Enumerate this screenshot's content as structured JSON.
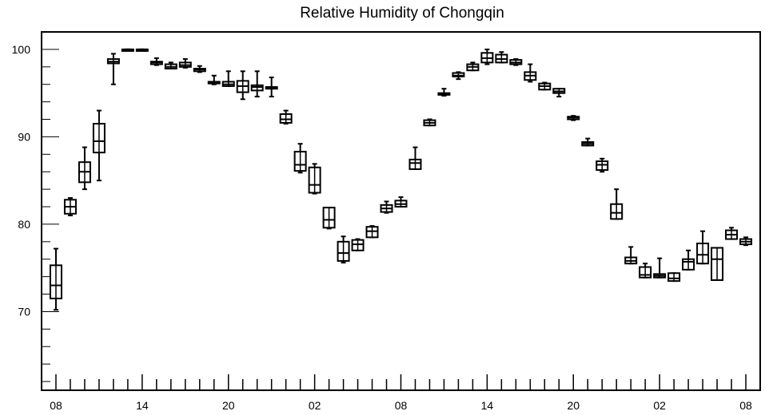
{
  "chart_data": {
    "type": "boxplot",
    "title": "Relative Humidity of Chongqin",
    "xlabel": "",
    "ylabel": "",
    "ylim": [
      61,
      102
    ],
    "y_ticks": [
      70,
      80,
      90,
      100
    ],
    "x_tick_labels": [
      {
        "hour": 0,
        "label": "08"
      },
      {
        "hour": 6,
        "label": "14"
      },
      {
        "hour": 12,
        "label": "20"
      },
      {
        "hour": 18,
        "label": "02"
      },
      {
        "hour": 24,
        "label": "08"
      },
      {
        "hour": 30,
        "label": "14"
      },
      {
        "hour": 36,
        "label": "20"
      },
      {
        "hour": 42,
        "label": "02"
      },
      {
        "hour": 48,
        "label": "08"
      }
    ],
    "xlim": [
      -1,
      49
    ],
    "grid": false,
    "boxes": [
      {
        "hour": 0,
        "min": 70.2,
        "q1": 71.5,
        "median": 73.0,
        "q3": 75.3,
        "max": 77.2
      },
      {
        "hour": 1,
        "min": 81.0,
        "q1": 81.2,
        "median": 82.0,
        "q3": 82.8,
        "max": 83.0
      },
      {
        "hour": 2,
        "min": 84.0,
        "q1": 84.8,
        "median": 86.0,
        "q3": 87.1,
        "max": 88.8
      },
      {
        "hour": 3,
        "min": 85.0,
        "q1": 88.2,
        "median": 89.5,
        "q3": 91.5,
        "max": 93.0
      },
      {
        "hour": 4,
        "min": 96.0,
        "q1": 98.4,
        "median": 98.6,
        "q3": 98.9,
        "max": 99.5
      },
      {
        "hour": 5,
        "min": 100.0,
        "q1": 100.0,
        "median": 100.0,
        "q3": 100.0,
        "max": 100.0
      },
      {
        "hour": 6,
        "min": 100.0,
        "q1": 100.0,
        "median": 100.0,
        "q3": 100.0,
        "max": 100.0
      },
      {
        "hour": 7,
        "min": 98.2,
        "q1": 98.3,
        "median": 98.5,
        "q3": 98.6,
        "max": 99.0
      },
      {
        "hour": 8,
        "min": 97.8,
        "q1": 97.8,
        "median": 98.0,
        "q3": 98.3,
        "max": 98.5
      },
      {
        "hour": 9,
        "min": 97.9,
        "q1": 98.0,
        "median": 98.2,
        "q3": 98.5,
        "max": 98.9
      },
      {
        "hour": 10,
        "min": 97.4,
        "q1": 97.5,
        "median": 97.7,
        "q3": 97.8,
        "max": 98.1
      },
      {
        "hour": 11,
        "min": 96.0,
        "q1": 96.1,
        "median": 96.2,
        "q3": 96.3,
        "max": 97.0
      },
      {
        "hour": 12,
        "min": 95.8,
        "q1": 95.8,
        "median": 96.0,
        "q3": 96.3,
        "max": 97.5
      },
      {
        "hour": 13,
        "min": 94.3,
        "q1": 95.1,
        "median": 95.8,
        "q3": 96.4,
        "max": 97.5
      },
      {
        "hour": 14,
        "min": 94.6,
        "q1": 95.3,
        "median": 95.7,
        "q3": 95.9,
        "max": 97.5
      },
      {
        "hour": 15,
        "min": 94.6,
        "q1": 95.5,
        "median": 95.6,
        "q3": 95.7,
        "max": 96.8
      },
      {
        "hour": 16,
        "min": 91.5,
        "q1": 91.6,
        "median": 92.0,
        "q3": 92.6,
        "max": 93.0
      },
      {
        "hour": 17,
        "min": 85.9,
        "q1": 86.1,
        "median": 86.8,
        "q3": 88.3,
        "max": 89.2
      },
      {
        "hour": 18,
        "min": 83.5,
        "q1": 83.6,
        "median": 84.5,
        "q3": 86.5,
        "max": 86.9
      },
      {
        "hour": 19,
        "min": 79.5,
        "q1": 79.6,
        "median": 80.5,
        "q3": 81.9,
        "max": 81.9
      },
      {
        "hour": 20,
        "min": 75.6,
        "q1": 75.8,
        "median": 76.7,
        "q3": 78.0,
        "max": 78.6
      },
      {
        "hour": 21,
        "min": 77.0,
        "q1": 77.0,
        "median": 77.7,
        "q3": 78.2,
        "max": 78.3
      },
      {
        "hour": 22,
        "min": 78.5,
        "q1": 78.5,
        "median": 79.2,
        "q3": 79.7,
        "max": 79.8
      },
      {
        "hour": 23,
        "min": 81.3,
        "q1": 81.4,
        "median": 81.8,
        "q3": 82.2,
        "max": 82.6
      },
      {
        "hour": 24,
        "min": 82.0,
        "q1": 82.0,
        "median": 82.3,
        "q3": 82.7,
        "max": 83.1
      },
      {
        "hour": 25,
        "min": 86.3,
        "q1": 86.3,
        "median": 87.0,
        "q3": 87.4,
        "max": 88.8
      },
      {
        "hour": 26,
        "min": 91.3,
        "q1": 91.3,
        "median": 91.6,
        "q3": 91.9,
        "max": 92.0
      },
      {
        "hour": 27,
        "min": 94.7,
        "q1": 94.8,
        "median": 94.9,
        "q3": 95.0,
        "max": 95.5
      },
      {
        "hour": 28,
        "min": 96.6,
        "q1": 96.9,
        "median": 97.0,
        "q3": 97.3,
        "max": 97.4
      },
      {
        "hour": 29,
        "min": 97.6,
        "q1": 97.6,
        "median": 98.0,
        "q3": 98.3,
        "max": 98.5
      },
      {
        "hour": 30,
        "min": 98.3,
        "q1": 98.5,
        "median": 99.0,
        "q3": 99.6,
        "max": 100.0
      },
      {
        "hour": 31,
        "min": 98.5,
        "q1": 98.5,
        "median": 98.9,
        "q3": 99.4,
        "max": 99.7
      },
      {
        "hour": 32,
        "min": 98.2,
        "q1": 98.3,
        "median": 98.5,
        "q3": 98.8,
        "max": 98.9
      },
      {
        "hour": 33,
        "min": 96.3,
        "q1": 96.5,
        "median": 97.0,
        "q3": 97.4,
        "max": 98.3
      },
      {
        "hour": 34,
        "min": 95.4,
        "q1": 95.4,
        "median": 95.8,
        "q3": 96.1,
        "max": 96.2
      },
      {
        "hour": 35,
        "min": 94.6,
        "q1": 95.0,
        "median": 95.2,
        "q3": 95.5,
        "max": 95.5
      },
      {
        "hour": 36,
        "min": 91.9,
        "q1": 92.0,
        "median": 92.2,
        "q3": 92.3,
        "max": 92.4
      },
      {
        "hour": 37,
        "min": 89.0,
        "q1": 89.0,
        "median": 89.2,
        "q3": 89.4,
        "max": 89.8
      },
      {
        "hour": 38,
        "min": 86.0,
        "q1": 86.2,
        "median": 86.8,
        "q3": 87.2,
        "max": 87.5
      },
      {
        "hour": 39,
        "min": 80.6,
        "q1": 80.6,
        "median": 81.3,
        "q3": 82.3,
        "max": 84.0
      },
      {
        "hour": 40,
        "min": 75.5,
        "q1": 75.5,
        "median": 75.8,
        "q3": 76.2,
        "max": 77.4
      },
      {
        "hour": 41,
        "min": 73.9,
        "q1": 73.9,
        "median": 74.2,
        "q3": 75.1,
        "max": 75.5
      },
      {
        "hour": 42,
        "min": 73.9,
        "q1": 73.9,
        "median": 74.1,
        "q3": 74.3,
        "max": 76.1
      },
      {
        "hour": 43,
        "min": 73.5,
        "q1": 73.5,
        "median": 73.8,
        "q3": 74.4,
        "max": 74.4
      },
      {
        "hour": 44,
        "min": 74.8,
        "q1": 74.8,
        "median": 75.7,
        "q3": 76.0,
        "max": 77.0
      },
      {
        "hour": 45,
        "min": 75.5,
        "q1": 75.5,
        "median": 76.5,
        "q3": 77.8,
        "max": 79.2
      },
      {
        "hour": 46,
        "min": 73.6,
        "q1": 73.6,
        "median": 76.0,
        "q3": 77.3,
        "max": 77.3
      },
      {
        "hour": 47,
        "min": 78.3,
        "q1": 78.3,
        "median": 78.8,
        "q3": 79.3,
        "max": 79.6
      },
      {
        "hour": 48,
        "min": 77.6,
        "q1": 77.7,
        "median": 78.0,
        "q3": 78.3,
        "max": 78.5
      }
    ]
  }
}
